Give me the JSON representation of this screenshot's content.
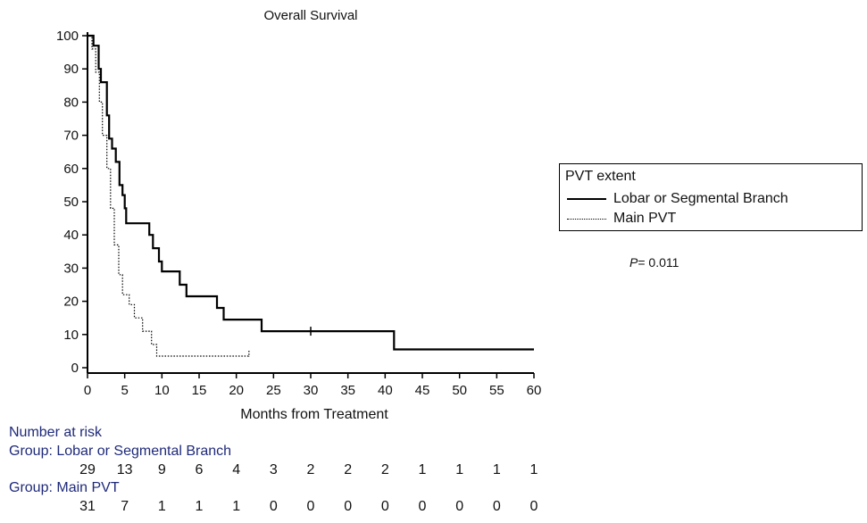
{
  "chart_data": {
    "type": "line",
    "title": "Overall Survival",
    "xlabel": "Months from Treatment",
    "ylabel": "",
    "xlim": [
      0,
      60
    ],
    "ylim": [
      0,
      100
    ],
    "x_ticks": [
      0,
      5,
      10,
      15,
      20,
      25,
      30,
      35,
      40,
      45,
      50,
      55,
      60
    ],
    "y_ticks": [
      0,
      10,
      20,
      30,
      40,
      50,
      60,
      70,
      80,
      90,
      100
    ],
    "grid": false,
    "legend_position": "right",
    "legend_title": "PVT extent",
    "series": [
      {
        "name": "Lobar or Segmental Branch",
        "style": "solid",
        "points": [
          [
            0,
            100
          ],
          [
            0.8,
            100
          ],
          [
            0.8,
            97
          ],
          [
            1.5,
            97
          ],
          [
            1.5,
            90
          ],
          [
            1.8,
            90
          ],
          [
            1.8,
            86
          ],
          [
            2.6,
            86
          ],
          [
            2.6,
            76
          ],
          [
            2.9,
            76
          ],
          [
            2.9,
            69
          ],
          [
            3.3,
            69
          ],
          [
            3.3,
            66
          ],
          [
            3.8,
            66
          ],
          [
            3.8,
            62
          ],
          [
            4.3,
            62
          ],
          [
            4.3,
            55
          ],
          [
            4.7,
            55
          ],
          [
            4.7,
            52
          ],
          [
            5.0,
            52
          ],
          [
            5.0,
            48
          ],
          [
            5.2,
            48
          ],
          [
            5.2,
            43.5
          ],
          [
            8.3,
            43.5
          ],
          [
            8.3,
            40
          ],
          [
            8.8,
            40
          ],
          [
            8.8,
            36
          ],
          [
            9.6,
            36
          ],
          [
            9.6,
            32
          ],
          [
            10.0,
            32
          ],
          [
            10.0,
            29
          ],
          [
            12.4,
            29
          ],
          [
            12.4,
            25
          ],
          [
            13.3,
            25
          ],
          [
            13.3,
            21.5
          ],
          [
            17.4,
            21.5
          ],
          [
            17.4,
            18
          ],
          [
            18.3,
            18
          ],
          [
            18.3,
            14.5
          ],
          [
            23.4,
            14.5
          ],
          [
            23.4,
            11
          ],
          [
            41.2,
            11
          ],
          [
            41.2,
            5.5
          ],
          [
            60,
            5.5
          ]
        ],
        "censor_x": [
          30.0
        ]
      },
      {
        "name": "Main PVT",
        "style": "dotted",
        "points": [
          [
            0,
            100
          ],
          [
            0.6,
            100
          ],
          [
            0.6,
            96
          ],
          [
            1.1,
            96
          ],
          [
            1.1,
            89
          ],
          [
            1.6,
            89
          ],
          [
            1.6,
            80
          ],
          [
            2.0,
            80
          ],
          [
            2.0,
            70
          ],
          [
            2.6,
            70
          ],
          [
            2.6,
            60
          ],
          [
            3.1,
            60
          ],
          [
            3.1,
            48
          ],
          [
            3.6,
            48
          ],
          [
            3.6,
            37
          ],
          [
            4.2,
            37
          ],
          [
            4.2,
            28
          ],
          [
            4.7,
            28
          ],
          [
            4.7,
            22
          ],
          [
            5.6,
            22
          ],
          [
            5.6,
            19
          ],
          [
            6.3,
            19
          ],
          [
            6.3,
            15
          ],
          [
            7.4,
            15
          ],
          [
            7.4,
            11
          ],
          [
            8.6,
            11
          ],
          [
            8.6,
            7
          ],
          [
            9.3,
            7
          ],
          [
            9.3,
            3.5
          ],
          [
            21.7,
            3.5
          ]
        ],
        "end_x": 21.7
      }
    ],
    "annotations": [
      {
        "prefix": "P",
        "value": "= 0.011"
      }
    ],
    "risk_table": {
      "heading": "Number at risk",
      "times": [
        0,
        5,
        10,
        15,
        20,
        25,
        30,
        35,
        40,
        45,
        50,
        55,
        60
      ],
      "groups": [
        {
          "label": "Group: Lobar or Segmental Branch",
          "counts": [
            29,
            13,
            9,
            6,
            4,
            3,
            2,
            2,
            2,
            1,
            1,
            1,
            1
          ]
        },
        {
          "label": "Group: Main PVT",
          "counts": [
            31,
            7,
            1,
            1,
            1,
            0,
            0,
            0,
            0,
            0,
            0,
            0,
            0
          ]
        }
      ]
    }
  },
  "legend": {
    "title": "PVT extent",
    "entries": [
      "Lobar or Segmental Branch",
      "Main PVT"
    ]
  },
  "colors": {
    "risk_heading": "#1f2a7a",
    "line": "#000000"
  }
}
